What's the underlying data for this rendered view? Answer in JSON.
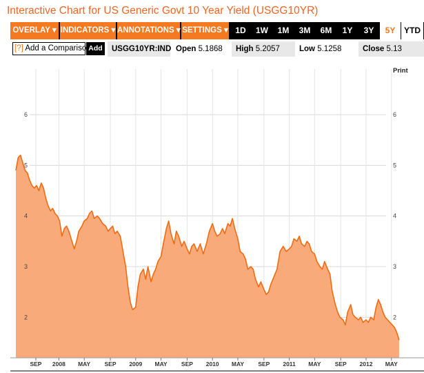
{
  "title": "Interactive Chart for US Generic Govt 10 Year Yield (USGG10YR)",
  "toolbar": {
    "menus": [
      "OVERLAY ▾",
      "INDICATORS ▾",
      "ANNOTATIONS ▾",
      "SETTINGS ▾"
    ],
    "ranges": [
      "1D",
      "1W",
      "1M",
      "3M",
      "6M",
      "1Y",
      "3Y",
      "5Y",
      "YTD"
    ],
    "active_range": "5Y"
  },
  "infobar": {
    "compare_prefix": "[?]",
    "compare_label": "Add a Comparison",
    "add_label": "Add",
    "ticker": "USGG10YR:IND",
    "open_label": "Open",
    "open_value": "5.1868",
    "high_label": "High",
    "high_value": "5.2057",
    "low_label": "Low",
    "low_value": "5.1258",
    "close_label": "Close",
    "close_value": "5.13"
  },
  "print_label": "Print",
  "colors": {
    "accent": "#f47920",
    "fill": "#f9aa7a",
    "line": "#f26a10",
    "title": "#f26522"
  },
  "chart_data": {
    "type": "area",
    "ylim": [
      1.2,
      6.9
    ],
    "yticks": [
      2,
      3,
      4,
      5,
      6
    ],
    "xticks": [
      {
        "label": "SEP",
        "t": 2007.7
      },
      {
        "label": "2008",
        "t": 2008.0
      },
      {
        "label": "MAY",
        "t": 2008.33
      },
      {
        "label": "SEP",
        "t": 2008.67
      },
      {
        "label": "2009",
        "t": 2009.0
      },
      {
        "label": "MAY",
        "t": 2009.33
      },
      {
        "label": "SEP",
        "t": 2009.67
      },
      {
        "label": "2010",
        "t": 2010.0
      },
      {
        "label": "MAY",
        "t": 2010.33
      },
      {
        "label": "SEP",
        "t": 2010.67
      },
      {
        "label": "2011",
        "t": 2011.0
      },
      {
        "label": "MAY",
        "t": 2011.33
      },
      {
        "label": "SEP",
        "t": 2011.67
      },
      {
        "label": "2012",
        "t": 2012.0
      },
      {
        "label": "MAY",
        "t": 2012.33
      }
    ],
    "xlim": [
      2007.44,
      2012.44
    ],
    "series": [
      {
        "points": [
          [
            2007.44,
            4.9
          ],
          [
            2007.47,
            5.15
          ],
          [
            2007.5,
            5.2
          ],
          [
            2007.53,
            5.05
          ],
          [
            2007.56,
            4.9
          ],
          [
            2007.59,
            4.85
          ],
          [
            2007.62,
            4.7
          ],
          [
            2007.65,
            4.6
          ],
          [
            2007.68,
            4.55
          ],
          [
            2007.71,
            4.6
          ],
          [
            2007.74,
            4.5
          ],
          [
            2007.77,
            4.65
          ],
          [
            2007.8,
            4.55
          ],
          [
            2007.83,
            4.35
          ],
          [
            2007.86,
            4.2
          ],
          [
            2007.89,
            4.1
          ],
          [
            2007.92,
            4.15
          ],
          [
            2007.95,
            4.05
          ],
          [
            2007.98,
            4.0
          ],
          [
            2008.01,
            3.9
          ],
          [
            2008.04,
            3.6
          ],
          [
            2008.07,
            3.75
          ],
          [
            2008.1,
            3.8
          ],
          [
            2008.13,
            3.7
          ],
          [
            2008.17,
            3.5
          ],
          [
            2008.2,
            3.35
          ],
          [
            2008.23,
            3.5
          ],
          [
            2008.26,
            3.7
          ],
          [
            2008.3,
            3.8
          ],
          [
            2008.33,
            3.9
          ],
          [
            2008.37,
            3.95
          ],
          [
            2008.4,
            4.05
          ],
          [
            2008.43,
            4.1
          ],
          [
            2008.46,
            3.95
          ],
          [
            2008.5,
            4.0
          ],
          [
            2008.53,
            3.95
          ],
          [
            2008.57,
            3.85
          ],
          [
            2008.61,
            3.8
          ],
          [
            2008.64,
            3.7
          ],
          [
            2008.67,
            3.75
          ],
          [
            2008.7,
            3.8
          ],
          [
            2008.73,
            3.65
          ],
          [
            2008.76,
            3.7
          ],
          [
            2008.8,
            3.6
          ],
          [
            2008.84,
            3.25
          ],
          [
            2008.87,
            3.0
          ],
          [
            2008.9,
            2.6
          ],
          [
            2008.93,
            2.3
          ],
          [
            2008.96,
            2.15
          ],
          [
            2009.0,
            2.2
          ],
          [
            2009.03,
            2.6
          ],
          [
            2009.06,
            2.85
          ],
          [
            2009.1,
            2.95
          ],
          [
            2009.13,
            2.75
          ],
          [
            2009.16,
            3.0
          ],
          [
            2009.2,
            2.7
          ],
          [
            2009.23,
            2.85
          ],
          [
            2009.26,
            2.95
          ],
          [
            2009.29,
            3.1
          ],
          [
            2009.33,
            3.2
          ],
          [
            2009.36,
            3.45
          ],
          [
            2009.4,
            3.75
          ],
          [
            2009.43,
            3.9
          ],
          [
            2009.46,
            3.65
          ],
          [
            2009.5,
            3.45
          ],
          [
            2009.53,
            3.7
          ],
          [
            2009.56,
            3.6
          ],
          [
            2009.6,
            3.4
          ],
          [
            2009.63,
            3.5
          ],
          [
            2009.67,
            3.35
          ],
          [
            2009.7,
            3.25
          ],
          [
            2009.73,
            3.4
          ],
          [
            2009.76,
            3.45
          ],
          [
            2009.8,
            3.3
          ],
          [
            2009.84,
            3.45
          ],
          [
            2009.88,
            3.25
          ],
          [
            2009.92,
            3.45
          ],
          [
            2009.96,
            3.7
          ],
          [
            2010.0,
            3.85
          ],
          [
            2010.03,
            3.7
          ],
          [
            2010.06,
            3.6
          ],
          [
            2010.1,
            3.65
          ],
          [
            2010.13,
            3.75
          ],
          [
            2010.16,
            3.65
          ],
          [
            2010.2,
            3.85
          ],
          [
            2010.23,
            3.8
          ],
          [
            2010.26,
            3.95
          ],
          [
            2010.29,
            3.75
          ],
          [
            2010.33,
            3.55
          ],
          [
            2010.36,
            3.3
          ],
          [
            2010.4,
            3.25
          ],
          [
            2010.43,
            3.15
          ],
          [
            2010.46,
            2.95
          ],
          [
            2010.5,
            3.0
          ],
          [
            2010.53,
            2.95
          ],
          [
            2010.56,
            2.75
          ],
          [
            2010.6,
            2.6
          ],
          [
            2010.63,
            2.7
          ],
          [
            2010.67,
            2.55
          ],
          [
            2010.7,
            2.45
          ],
          [
            2010.73,
            2.5
          ],
          [
            2010.76,
            2.65
          ],
          [
            2010.8,
            2.8
          ],
          [
            2010.84,
            2.95
          ],
          [
            2010.88,
            3.3
          ],
          [
            2010.92,
            3.4
          ],
          [
            2010.96,
            3.3
          ],
          [
            2011.0,
            3.35
          ],
          [
            2011.03,
            3.4
          ],
          [
            2011.06,
            3.55
          ],
          [
            2011.1,
            3.5
          ],
          [
            2011.13,
            3.6
          ],
          [
            2011.16,
            3.45
          ],
          [
            2011.2,
            3.4
          ],
          [
            2011.23,
            3.5
          ],
          [
            2011.26,
            3.45
          ],
          [
            2011.29,
            3.3
          ],
          [
            2011.33,
            3.25
          ],
          [
            2011.36,
            3.1
          ],
          [
            2011.4,
            3.0
          ],
          [
            2011.43,
            2.95
          ],
          [
            2011.46,
            3.1
          ],
          [
            2011.5,
            2.95
          ],
          [
            2011.53,
            2.85
          ],
          [
            2011.56,
            2.5
          ],
          [
            2011.6,
            2.25
          ],
          [
            2011.63,
            2.1
          ],
          [
            2011.66,
            2.0
          ],
          [
            2011.7,
            1.95
          ],
          [
            2011.73,
            1.85
          ],
          [
            2011.76,
            2.1
          ],
          [
            2011.8,
            2.25
          ],
          [
            2011.83,
            2.05
          ],
          [
            2011.86,
            2.0
          ],
          [
            2011.9,
            1.95
          ],
          [
            2011.93,
            2.0
          ],
          [
            2011.96,
            1.9
          ],
          [
            2012.0,
            1.95
          ],
          [
            2012.03,
            1.9
          ],
          [
            2012.06,
            2.0
          ],
          [
            2012.1,
            1.95
          ],
          [
            2012.13,
            2.2
          ],
          [
            2012.16,
            2.35
          ],
          [
            2012.19,
            2.25
          ],
          [
            2012.22,
            2.1
          ],
          [
            2012.25,
            2.0
          ],
          [
            2012.28,
            1.95
          ],
          [
            2012.31,
            1.9
          ],
          [
            2012.34,
            1.85
          ],
          [
            2012.37,
            1.8
          ],
          [
            2012.4,
            1.7
          ],
          [
            2012.43,
            1.55
          ]
        ]
      }
    ]
  }
}
